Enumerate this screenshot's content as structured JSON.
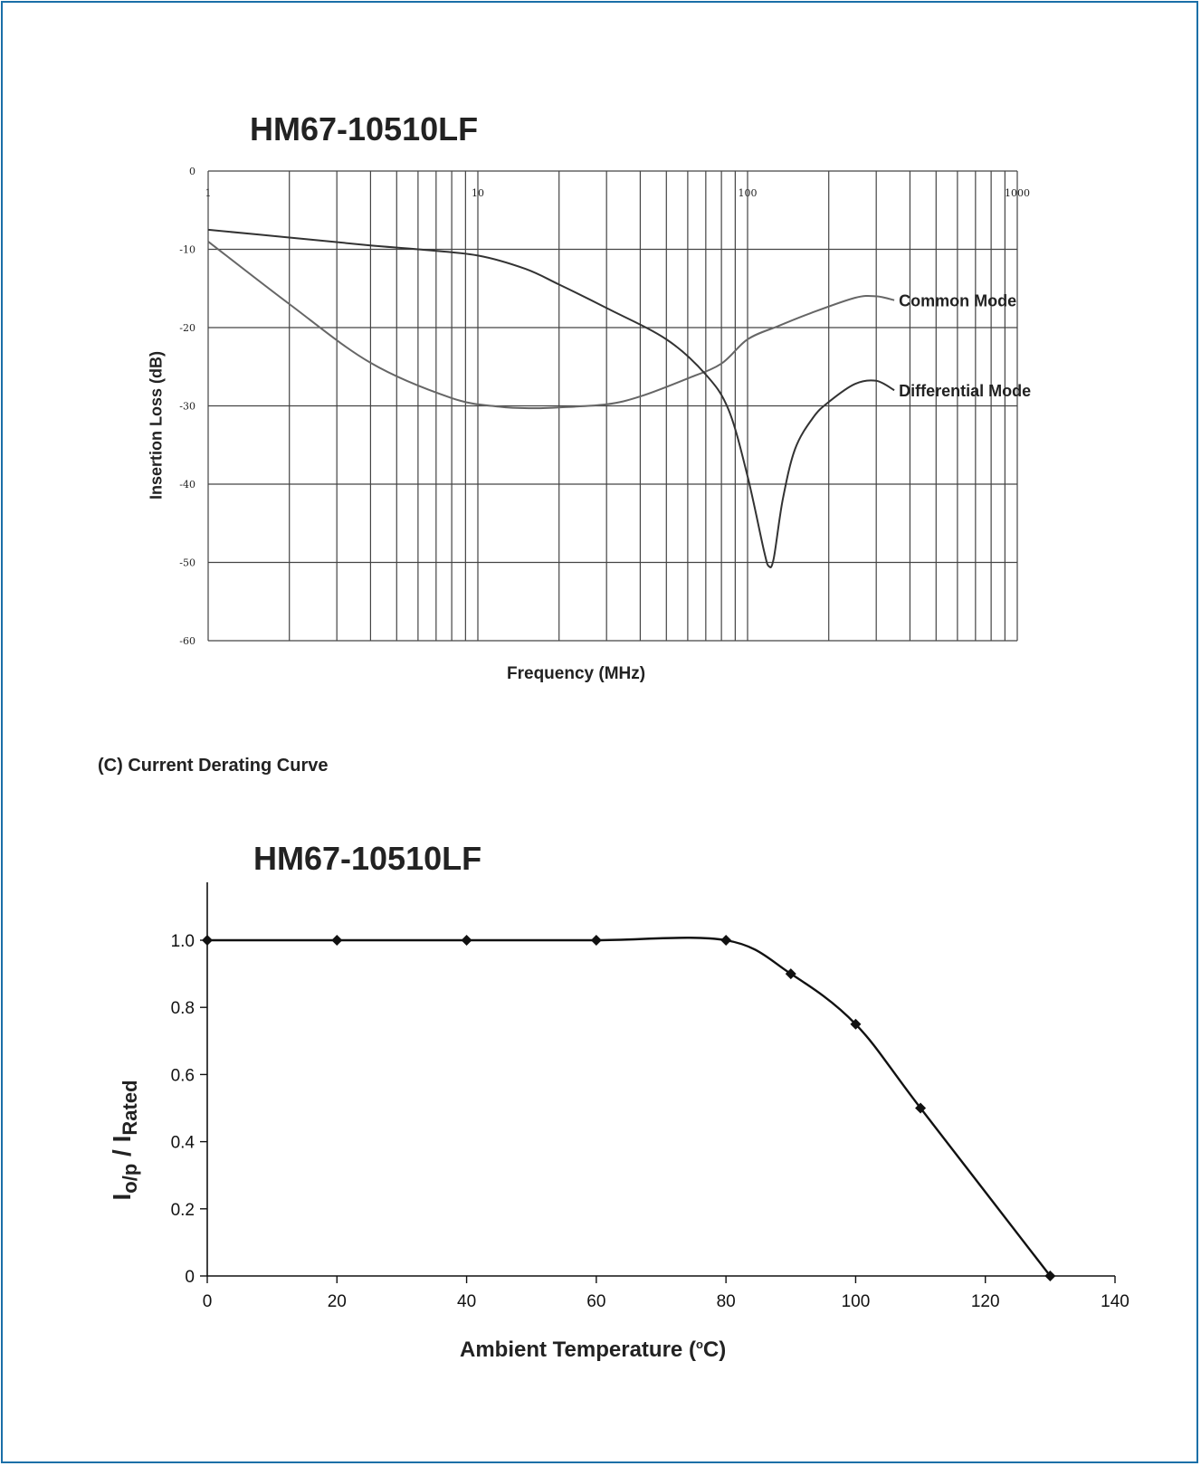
{
  "section_label": "(C) Current Derating Curve",
  "chart_data": [
    {
      "type": "line",
      "title": "HM67-10510LF",
      "xlabel": "Frequency (MHz)",
      "ylabel": "Insertion Loss (dB)",
      "x_scale": "log",
      "xlim": [
        1,
        1000
      ],
      "ylim": [
        -60,
        0
      ],
      "x_ticks": [
        "1",
        "10",
        "100",
        "1000"
      ],
      "y_ticks": [
        "0",
        "-10",
        "-20",
        "-30",
        "-40",
        "-50",
        "-60"
      ],
      "grid": true,
      "series": [
        {
          "name": "Common Mode",
          "color": "#666666",
          "x": [
            1,
            2,
            4,
            8,
            12,
            16,
            20,
            30,
            40,
            60,
            80,
            100,
            130,
            170,
            250,
            300,
            350
          ],
          "y": [
            -9,
            -17,
            -24.5,
            -29,
            -30.1,
            -30.3,
            -30.2,
            -29.8,
            -28.8,
            -26.5,
            -24.6,
            -21.5,
            -19.8,
            -18.2,
            -16.2,
            -16,
            -16.5
          ]
        },
        {
          "name": "Differential Mode",
          "color": "#333333",
          "x": [
            1,
            2,
            4,
            6,
            10,
            15,
            20,
            30,
            50,
            70,
            85,
            100,
            115,
            120,
            125,
            135,
            150,
            175,
            200,
            250,
            300,
            350
          ],
          "y": [
            -7.5,
            -8.5,
            -9.5,
            -10,
            -10.8,
            -12.5,
            -14.5,
            -17.5,
            -21.5,
            -26,
            -30.5,
            -39,
            -48.5,
            -50.5,
            -49.5,
            -42,
            -35.5,
            -31.5,
            -29.5,
            -27.2,
            -26.8,
            -28
          ]
        }
      ]
    },
    {
      "type": "line",
      "title": "HM67-10510LF",
      "xlabel": "Ambient Temperature (°C)",
      "ylabel": "I o/p / I Rated",
      "xlim": [
        0,
        140
      ],
      "ylim": [
        0,
        1.0
      ],
      "x_ticks": [
        "0",
        "20",
        "40",
        "60",
        "80",
        "100",
        "120",
        "140"
      ],
      "y_ticks": [
        "0",
        "0.2",
        "0.4",
        "0.6",
        "0.8",
        "1.0"
      ],
      "grid": false,
      "series": [
        {
          "color": "#111111",
          "marker": "diamond",
          "x": [
            0,
            20,
            40,
            60,
            80,
            90,
            100,
            110,
            130
          ],
          "y": [
            1.0,
            1.0,
            1.0,
            1.0,
            1.0,
            0.9,
            0.75,
            0.5,
            0
          ]
        }
      ]
    }
  ]
}
